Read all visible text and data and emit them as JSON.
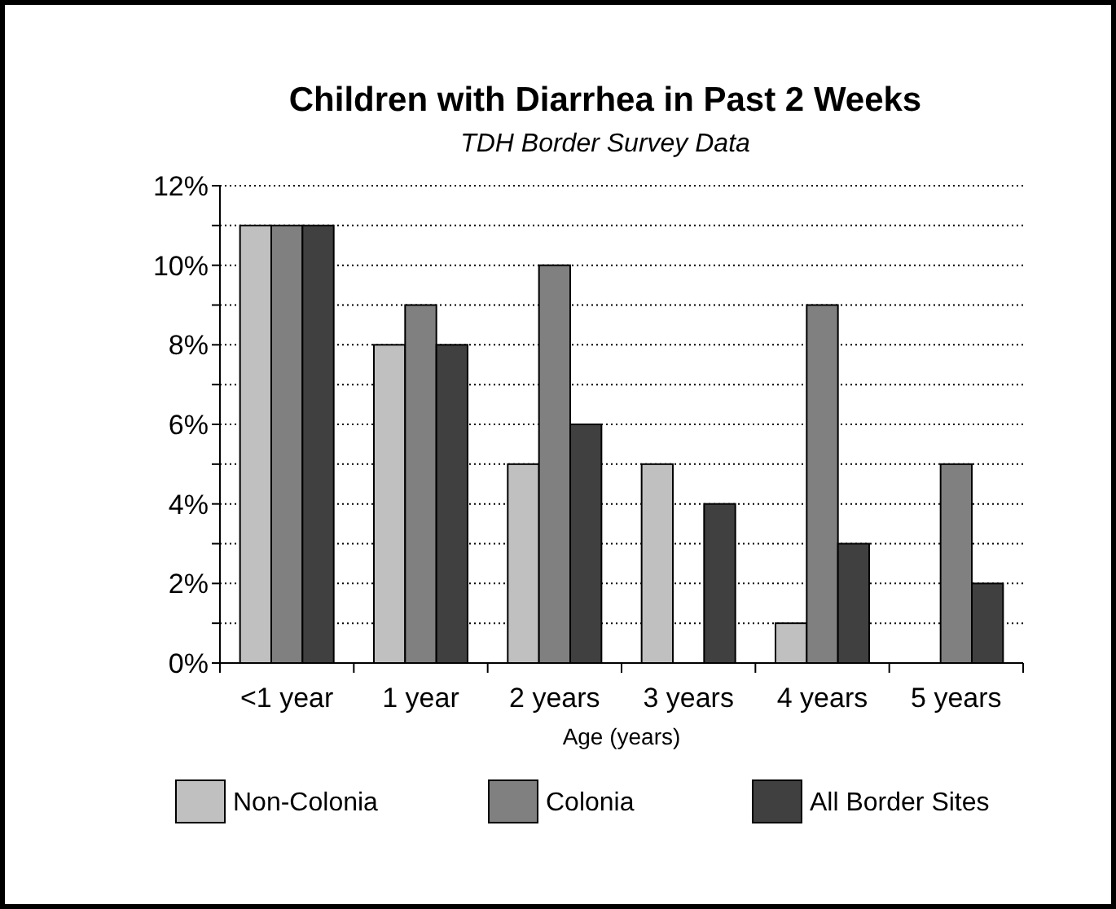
{
  "chart_data": {
    "type": "bar",
    "title": "Children with Diarrhea in Past 2 Weeks",
    "subtitle": "TDH Border Survey Data",
    "xlabel": "Age (years)",
    "categories": [
      "<1 year",
      "1 year",
      "2 years",
      "3 years",
      "4 years",
      "5 years"
    ],
    "series": [
      {
        "name": "Non-Colonia",
        "color": "#c0c0c0",
        "values": [
          11,
          8,
          5,
          5,
          1,
          0
        ]
      },
      {
        "name": "Colonia",
        "color": "#808080",
        "values": [
          11,
          9,
          10,
          0,
          9,
          5
        ]
      },
      {
        "name": "All Border Sites",
        "color": "#404040",
        "values": [
          11,
          8,
          6,
          4,
          3,
          2
        ]
      }
    ],
    "ylim": [
      0,
      12
    ],
    "yticks": [
      {
        "value": 0,
        "label": "0%"
      },
      {
        "value": 1,
        "label": null
      },
      {
        "value": 2,
        "label": "2%"
      },
      {
        "value": 3,
        "label": null
      },
      {
        "value": 4,
        "label": "4%"
      },
      {
        "value": 5,
        "label": null
      },
      {
        "value": 6,
        "label": "6%"
      },
      {
        "value": 7,
        "label": null
      },
      {
        "value": 8,
        "label": "8%"
      },
      {
        "value": 9,
        "label": null
      },
      {
        "value": 10,
        "label": "10%"
      },
      {
        "value": 11,
        "label": null
      },
      {
        "value": 12,
        "label": "12%"
      }
    ],
    "grid": "y",
    "legend": "bottom"
  }
}
